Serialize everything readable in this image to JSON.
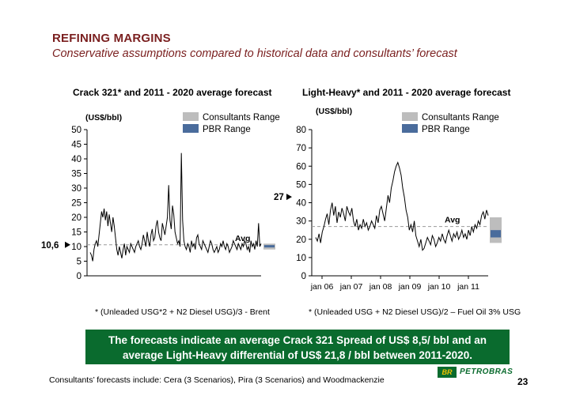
{
  "slide": {
    "title": "REFINING MARGINS",
    "subtitle": "Conservative assumptions compared to historical data and consultants’ forecast",
    "banner_line1": "The forecasts indicate an average Crack  321 Spread of US$ 8,5/ bbl and an",
    "banner_line2": "average Light-Heavy differential of US$ 21,8 / bbl between 2011-2020.",
    "consultants_note": "Consultants’ forecasts include: Cera (3 Scenarios), Pira (3 Scenarios) and Woodmackenzie",
    "page_number": "23",
    "logo_mark": "BR",
    "logo_text": "PETROBRAS",
    "colors": {
      "title": "#7a1f1f",
      "banner": "#0a6b2e",
      "consultants_range": "#bdbdbd",
      "pbr_range": "#4a6c9c"
    }
  },
  "chart_data": [
    {
      "type": "line",
      "title": "Crack 321* and 2011 - 2020 average forecast",
      "ylabel": "(US$/bbl)",
      "ylim": [
        0,
        50
      ],
      "yticks": [
        "0",
        "5",
        "10",
        "15",
        "20",
        "25",
        "30",
        "35",
        "40",
        "45",
        "50"
      ],
      "legend": [
        "Consultants Range",
        "PBR Range"
      ],
      "legend_position": "top-right",
      "avg_label": "Avg",
      "avg_value": 10.6,
      "left_marker_label": "10,6",
      "right_marker_label": "27",
      "footnote": "* (Unleaded USG*2 + N2 Diesel USG)/3 - Brent",
      "series": [
        {
          "values": [
            8,
            7,
            5,
            9,
            11,
            12,
            10,
            14,
            18,
            22,
            20,
            23,
            19,
            22,
            17,
            21,
            18,
            15,
            20,
            17,
            13,
            9,
            7,
            10,
            8,
            6,
            9,
            11,
            7,
            10,
            9,
            8,
            11,
            10,
            9,
            8,
            10,
            11,
            12,
            10,
            9,
            11,
            14,
            12,
            10,
            15,
            12,
            10,
            14,
            16,
            12,
            13,
            17,
            19,
            15,
            13,
            12,
            18,
            16,
            14,
            17,
            20,
            31,
            19,
            16,
            24,
            21,
            15,
            13,
            11,
            12,
            10,
            42,
            19,
            12,
            10,
            9,
            11,
            10,
            8,
            12,
            10,
            11,
            9,
            13,
            14,
            11,
            10,
            9,
            12,
            11,
            10,
            9,
            8,
            10,
            12,
            11,
            9,
            8,
            9,
            10,
            8,
            9,
            11,
            10,
            12,
            10,
            9,
            11,
            10,
            8,
            9,
            10,
            12,
            11,
            10,
            9,
            11,
            10,
            9,
            11,
            10,
            12,
            11,
            9,
            10,
            8,
            12,
            10,
            11,
            9,
            12,
            10,
            18,
            10,
            11
          ]
        }
      ],
      "consultants_range": [
        9,
        11
      ],
      "pbr_range": [
        9.7,
        10.5
      ],
      "grid": false
    },
    {
      "type": "line",
      "title": "Light-Heavy* and 2011 - 2020 average forecast",
      "ylabel": "(US$/bbl)",
      "ylim": [
        0,
        80
      ],
      "yticks": [
        "0",
        "10",
        "20",
        "30",
        "40",
        "50",
        "60",
        "70",
        "80"
      ],
      "xticks": [
        "jan 06",
        "jan 07",
        "jan 08",
        "jan 09",
        "jan 10",
        "jan 11"
      ],
      "legend": [
        "Consultants Range",
        "PBR Range"
      ],
      "legend_position": "top-right",
      "avg_label": "Avg",
      "avg_value": 27,
      "footnote": "* (Unleaded USG + N2 Diesel USG)/2 – Fuel Oil 3% USG",
      "series": [
        {
          "values": [
            21,
            19,
            23,
            18,
            24,
            27,
            31,
            34,
            28,
            36,
            40,
            33,
            38,
            29,
            35,
            32,
            37,
            34,
            30,
            38,
            35,
            33,
            37,
            30,
            27,
            31,
            25,
            28,
            26,
            31,
            27,
            29,
            25,
            27,
            30,
            28,
            26,
            33,
            29,
            36,
            38,
            34,
            30,
            37,
            44,
            40,
            48,
            52,
            57,
            60,
            62,
            59,
            55,
            48,
            43,
            36,
            32,
            25,
            28,
            24,
            30,
            22,
            19,
            16,
            20,
            14,
            15,
            18,
            21,
            19,
            17,
            22,
            20,
            16,
            18,
            21,
            19,
            23,
            20,
            18,
            22,
            25,
            22,
            19,
            23,
            21,
            24,
            20,
            22,
            25,
            21,
            23,
            20,
            25,
            22,
            27,
            24,
            28,
            26,
            30,
            28,
            33,
            35,
            31,
            36,
            33
          ]
        }
      ],
      "consultants_range": [
        18,
        32
      ],
      "pbr_range": [
        21,
        25
      ],
      "grid": false
    }
  ]
}
